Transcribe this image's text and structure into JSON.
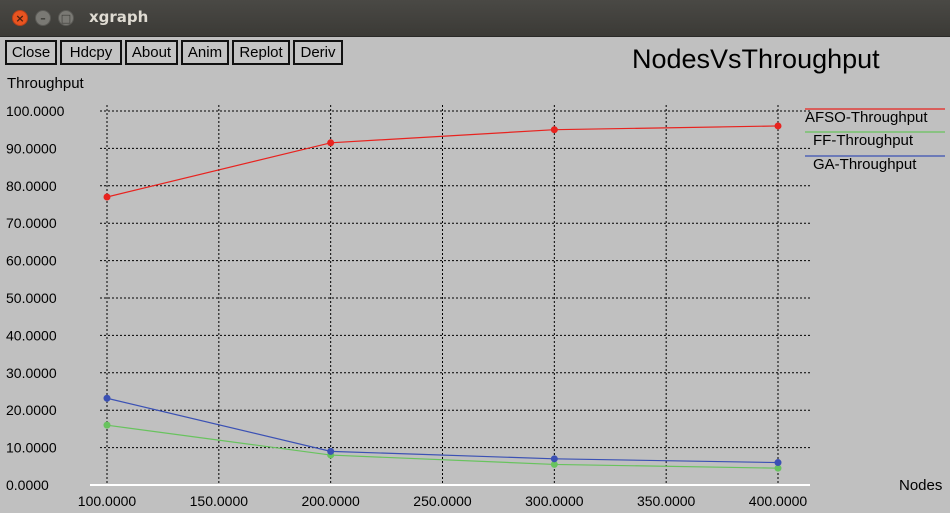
{
  "window": {
    "title": "xgraph",
    "controls": [
      "close",
      "minimize",
      "maximize"
    ]
  },
  "toolbar": {
    "buttons": [
      "Close",
      "Hdcpy",
      "About",
      "Anim",
      "Replot",
      "Deriv"
    ]
  },
  "chart_data": {
    "type": "line",
    "title": "NodesVsThroughput",
    "xlabel": "Nodes",
    "ylabel": "Throughput",
    "xlim": [
      100,
      400
    ],
    "ylim": [
      0,
      100
    ],
    "x_ticks": [
      "100.0000",
      "150.0000",
      "200.0000",
      "250.0000",
      "300.0000",
      "350.0000",
      "400.0000"
    ],
    "x_tick_values": [
      100,
      150,
      200,
      250,
      300,
      350,
      400
    ],
    "y_ticks": [
      "0.0000",
      "10.0000",
      "20.0000",
      "30.0000",
      "40.0000",
      "50.0000",
      "60.0000",
      "70.0000",
      "80.0000",
      "90.0000",
      "100.0000"
    ],
    "y_tick_values": [
      0,
      10,
      20,
      30,
      40,
      50,
      60,
      70,
      80,
      90,
      100
    ],
    "grid": true,
    "legend_position": "top-right",
    "x": [
      100,
      200,
      300,
      400
    ],
    "series": [
      {
        "name": "AFSO-Throughput",
        "color": "#e8231f",
        "values": [
          77,
          91.5,
          95,
          96
        ]
      },
      {
        "name": "FF-Throughput",
        "color": "#68c35e",
        "values": [
          16,
          8,
          5.5,
          4.5
        ]
      },
      {
        "name": "GA-Throughput",
        "color": "#3b51b4",
        "values": [
          23.2,
          9,
          7,
          6
        ]
      }
    ]
  }
}
